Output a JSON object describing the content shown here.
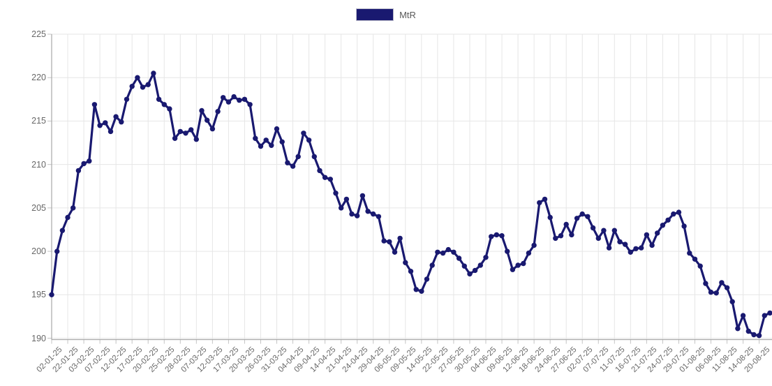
{
  "legend": {
    "label": "MtR"
  },
  "colors": {
    "series": "#191970",
    "grid": "#e6e6e6",
    "axis_border": "#a8a8a8",
    "tick_mark": "#c4c4c4",
    "tick_text": "#686868",
    "background": "#ffffff"
  },
  "chart_data": {
    "type": "line",
    "title": "",
    "xlabel": "",
    "ylabel": "",
    "legend_position": "top",
    "grid": true,
    "point_markers": true,
    "ylim": [
      190,
      225
    ],
    "y_ticks": [
      190,
      195,
      200,
      205,
      210,
      215,
      220,
      225
    ],
    "label_every_n_points": 3,
    "x_tick_labels": [
      "02-01-25",
      "22-01-25",
      "03-02-25",
      "07-02-25",
      "12-02-25",
      "17-02-25",
      "20-02-25",
      "25-02-25",
      "28-02-25",
      "07-03-25",
      "12-03-25",
      "17-03-25",
      "20-03-25",
      "26-03-25",
      "31-03-25",
      "04-04-25",
      "09-04-25",
      "14-04-25",
      "21-04-25",
      "24-04-25",
      "29-04-25",
      "06-05-25",
      "09-05-25",
      "14-05-25",
      "22-05-25",
      "27-05-25",
      "30-05-25",
      "04-06-25",
      "09-06-25",
      "12-06-25",
      "18-06-25",
      "24-06-25",
      "27-06-25",
      "02-07-25",
      "07-07-25",
      "11-07-25",
      "16-07-25",
      "21-07-25",
      "24-07-25",
      "29-07-25",
      "01-08-25",
      "06-08-25",
      "11-08-25",
      "14-08-25",
      "20-08-25"
    ],
    "series": [
      {
        "name": "MtR",
        "color": "#191970",
        "values": [
          195.0,
          200.0,
          202.4,
          203.9,
          205.0,
          209.3,
          210.1,
          210.4,
          216.9,
          214.5,
          214.8,
          213.8,
          215.5,
          214.9,
          217.5,
          219.0,
          220.0,
          218.9,
          219.2,
          220.5,
          217.5,
          216.9,
          216.4,
          213.0,
          213.8,
          213.6,
          214.0,
          212.9,
          216.2,
          215.1,
          214.1,
          216.1,
          217.7,
          217.2,
          217.8,
          217.4,
          217.5,
          216.9,
          213.0,
          212.1,
          212.8,
          212.2,
          214.1,
          212.6,
          210.2,
          209.8,
          210.9,
          213.6,
          212.8,
          210.9,
          209.3,
          208.5,
          208.3,
          206.7,
          205.0,
          206.0,
          204.3,
          204.1,
          206.4,
          204.6,
          204.3,
          204.0,
          201.2,
          201.1,
          199.9,
          201.5,
          198.7,
          197.7,
          195.6,
          195.4,
          196.8,
          198.4,
          199.9,
          199.8,
          200.2,
          199.9,
          199.2,
          198.3,
          197.4,
          197.8,
          198.4,
          199.3,
          201.7,
          201.9,
          201.8,
          200.0,
          197.9,
          198.4,
          198.6,
          199.8,
          200.7,
          205.6,
          206.0,
          203.9,
          201.5,
          201.8,
          203.1,
          201.9,
          203.8,
          204.3,
          204.0,
          202.7,
          201.5,
          202.4,
          200.4,
          202.4,
          201.1,
          200.8,
          199.9,
          200.3,
          200.4,
          201.9,
          200.7,
          202.1,
          203.0,
          203.6,
          204.3,
          204.5,
          202.9,
          199.8,
          199.1,
          198.3,
          196.3,
          195.3,
          195.2,
          196.4,
          195.8,
          194.2,
          191.1,
          192.6,
          190.8,
          190.4,
          190.3,
          192.6,
          192.9
        ]
      }
    ]
  }
}
